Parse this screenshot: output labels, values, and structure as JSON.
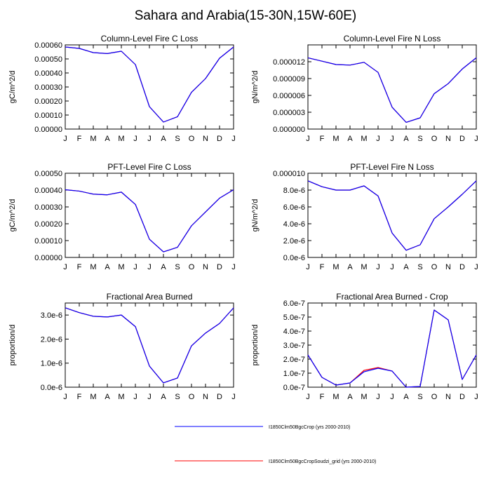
{
  "title": "Sahara and Arabia(15-30N,15W-60E)",
  "legend": [
    {
      "label": "I1850Clm50BgcCrop (yrs 2000-2010)",
      "color": "#0000ff"
    },
    {
      "label": "I1850Clm50BgcCropSoudzi_grid (yrs 2000-2010)",
      "color": "#ff0000"
    }
  ],
  "chart_data": [
    {
      "type": "line",
      "title": "Column-Level Fire C Loss",
      "ylabel": "gC/m^2/d",
      "categories": [
        "J",
        "F",
        "M",
        "A",
        "M",
        "J",
        "J",
        "A",
        "S",
        "O",
        "N",
        "D",
        "J"
      ],
      "ylim": [
        0,
        0.0006
      ],
      "yticks": [
        0,
        0.0001,
        0.0002,
        0.0003,
        0.0004,
        0.0005,
        0.0006
      ],
      "yticklabels": [
        "0.00000",
        "0.00010",
        "0.00020",
        "0.00030",
        "0.00040",
        "0.00050",
        "0.00060"
      ],
      "series": [
        {
          "name": "I1850Clm50BgcCrop (yrs 2000-2010)",
          "color": "#0000ff",
          "values": [
            0.000585,
            0.000575,
            0.000545,
            0.000538,
            0.000555,
            0.00046,
            0.00016,
            5e-05,
            8.8e-05,
            0.000262,
            0.00036,
            0.000505,
            0.000585
          ]
        },
        {
          "name": "I1850Clm50BgcCropSoudzi_grid (yrs 2000-2010)",
          "color": "#ff0000",
          "values": [
            0.000585,
            0.000575,
            0.000545,
            0.000538,
            0.000555,
            0.00046,
            0.00016,
            5e-05,
            8.8e-05,
            0.000262,
            0.00036,
            0.000505,
            0.000585
          ]
        }
      ]
    },
    {
      "type": "line",
      "title": "Column-Level Fire N Loss",
      "ylabel": "gN/m^2/d",
      "categories": [
        "J",
        "F",
        "M",
        "A",
        "M",
        "J",
        "J",
        "A",
        "S",
        "O",
        "N",
        "D",
        "J"
      ],
      "ylim": [
        0,
        1.5e-05
      ],
      "yticks": [
        0,
        3e-06,
        6e-06,
        9e-06,
        1.2e-05
      ],
      "yticklabels": [
        "0.000000",
        "0.000003",
        "0.000006",
        "0.000009",
        "0.000012"
      ],
      "series": [
        {
          "name": "I1850Clm50BgcCrop (yrs 2000-2010)",
          "color": "#0000ff",
          "values": [
            1.27e-05,
            1.21e-05,
            1.15e-05,
            1.14e-05,
            1.19e-05,
            1.01e-05,
            3.9e-06,
            1.2e-06,
            2e-06,
            6.3e-06,
            8.1e-06,
            1.07e-05,
            1.27e-05
          ]
        },
        {
          "name": "I1850Clm50BgcCropSoudzi_grid (yrs 2000-2010)",
          "color": "#ff0000",
          "values": [
            1.27e-05,
            1.21e-05,
            1.15e-05,
            1.14e-05,
            1.19e-05,
            1.01e-05,
            3.9e-06,
            1.2e-06,
            2e-06,
            6.3e-06,
            8.1e-06,
            1.07e-05,
            1.27e-05
          ]
        }
      ]
    },
    {
      "type": "line",
      "title": "PFT-Level Fire C Loss",
      "ylabel": "gC/m^2/d",
      "categories": [
        "J",
        "F",
        "M",
        "A",
        "M",
        "J",
        "J",
        "A",
        "S",
        "O",
        "N",
        "D",
        "J"
      ],
      "ylim": [
        0,
        0.0005
      ],
      "yticks": [
        0,
        0.0001,
        0.0002,
        0.0003,
        0.0004,
        0.0005
      ],
      "yticklabels": [
        "0.00000",
        "0.00010",
        "0.00020",
        "0.00030",
        "0.00040",
        "0.00050"
      ],
      "series": [
        {
          "name": "I1850Clm50BgcCrop (yrs 2000-2010)",
          "color": "#0000ff",
          "values": [
            0.000402,
            0.000394,
            0.000376,
            0.000372,
            0.000388,
            0.000315,
            0.000108,
            3.3e-05,
            6e-05,
            0.000188,
            0.00027,
            0.000352,
            0.000402
          ]
        },
        {
          "name": "I1850Clm50BgcCropSoudzi_grid (yrs 2000-2010)",
          "color": "#ff0000",
          "values": [
            0.000402,
            0.000394,
            0.000376,
            0.000372,
            0.000388,
            0.000315,
            0.000108,
            3.3e-05,
            6e-05,
            0.000188,
            0.00027,
            0.000352,
            0.000402
          ]
        }
      ]
    },
    {
      "type": "line",
      "title": "PFT-Level Fire N Loss",
      "ylabel": "gN/m^2/d",
      "categories": [
        "J",
        "F",
        "M",
        "A",
        "M",
        "J",
        "J",
        "A",
        "S",
        "O",
        "N",
        "D",
        "J"
      ],
      "ylim": [
        0,
        1e-05
      ],
      "yticks": [
        0,
        2e-06,
        4e-06,
        6e-06,
        8e-06,
        1e-05
      ],
      "yticklabels": [
        "0.0e-6",
        "2.0e-6",
        "4.0e-6",
        "6.0e-6",
        "8.0e-6",
        "0.000010"
      ],
      "series": [
        {
          "name": "I1850Clm50BgcCrop (yrs 2000-2010)",
          "color": "#0000ff",
          "values": [
            9.1e-06,
            8.4e-06,
            8e-06,
            8e-06,
            8.5e-06,
            7.3e-06,
            2.9e-06,
            8.5e-07,
            1.5e-06,
            4.6e-06,
            6e-06,
            7.5e-06,
            9.1e-06
          ]
        },
        {
          "name": "I1850Clm50BgcCropSoudzi_grid (yrs 2000-2010)",
          "color": "#ff0000",
          "values": [
            9.1e-06,
            8.4e-06,
            8e-06,
            8e-06,
            8.5e-06,
            7.3e-06,
            2.9e-06,
            8.5e-07,
            1.5e-06,
            4.6e-06,
            6e-06,
            7.5e-06,
            9.1e-06
          ]
        }
      ]
    },
    {
      "type": "line",
      "title": "Fractional Area Burned",
      "ylabel": "proportion/d",
      "categories": [
        "J",
        "F",
        "M",
        "A",
        "M",
        "J",
        "J",
        "A",
        "S",
        "O",
        "N",
        "D",
        "J"
      ],
      "ylim": [
        0,
        3.5e-06
      ],
      "yticks": [
        0,
        1e-06,
        2e-06,
        3e-06
      ],
      "yticklabels": [
        "0.0e-6",
        "1.0e-6",
        "2.0e-6",
        "3.0e-6"
      ],
      "series": [
        {
          "name": "I1850Clm50BgcCrop (yrs 2000-2010)",
          "color": "#0000ff",
          "values": [
            3.3e-06,
            3.1e-06,
            2.95e-06,
            2.92e-06,
            3e-06,
            2.52e-06,
            8.8e-07,
            1.8e-07,
            3.8e-07,
            1.72e-06,
            2.25e-06,
            2.65e-06,
            3.3e-06
          ]
        },
        {
          "name": "I1850Clm50BgcCropSoudzi_grid (yrs 2000-2010)",
          "color": "#ff0000",
          "values": [
            3.3e-06,
            3.1e-06,
            2.95e-06,
            2.92e-06,
            3e-06,
            2.52e-06,
            8.8e-07,
            1.8e-07,
            3.8e-07,
            1.72e-06,
            2.25e-06,
            2.65e-06,
            3.3e-06
          ]
        }
      ]
    },
    {
      "type": "line",
      "title": "Fractional Area Burned - Crop",
      "ylabel": "proportion/d",
      "categories": [
        "J",
        "F",
        "M",
        "A",
        "M",
        "J",
        "J",
        "A",
        "S",
        "O",
        "N",
        "D",
        "J"
      ],
      "ylim": [
        0,
        6e-07
      ],
      "yticks": [
        0,
        1e-07,
        2e-07,
        3e-07,
        4e-07,
        5e-07,
        6e-07
      ],
      "yticklabels": [
        "0.0e-7",
        "1.0e-7",
        "2.0e-7",
        "3.0e-7",
        "4.0e-7",
        "5.0e-7",
        "6.0e-7"
      ],
      "series": [
        {
          "name": "I1850Clm50BgcCrop (yrs 2000-2010)",
          "color": "#0000ff",
          "values": [
            2.3e-07,
            7e-08,
            1.5e-08,
            3e-08,
            1.1e-07,
            1.35e-07,
            1.15e-07,
            0,
            5e-09,
            5.5e-07,
            4.8e-07,
            5.5e-08,
            2.3e-07
          ]
        },
        {
          "name": "I1850Clm50BgcCropSoudzi_grid (yrs 2000-2010)",
          "color": "#ff0000",
          "values": [
            2.3e-07,
            7e-08,
            1.5e-08,
            3e-08,
            1.2e-07,
            1.4e-07,
            1.15e-07,
            0,
            5e-09,
            5.5e-07,
            4.8e-07,
            5.5e-08,
            2.3e-07
          ]
        }
      ]
    }
  ]
}
